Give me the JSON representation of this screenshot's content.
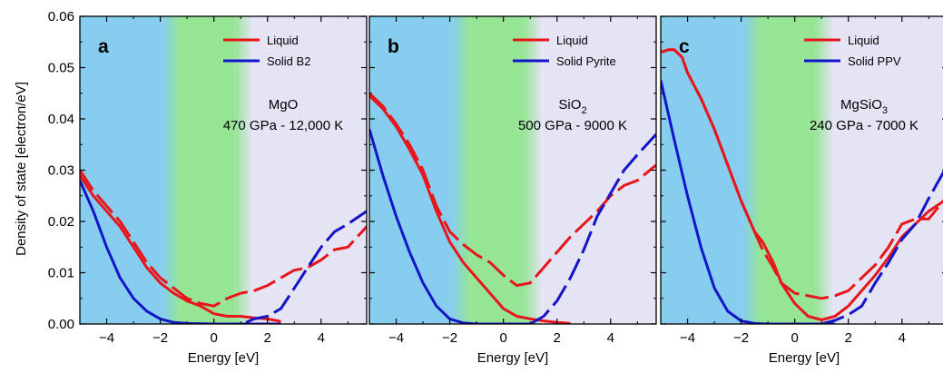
{
  "chart_data": [
    {
      "type": "line",
      "panel_label": "a",
      "annotation": [
        "MgO",
        "470 GPa - 12,000 K"
      ],
      "xlabel": "Energy [eV]",
      "ylabel": "Density of state [electron/eV]",
      "xlim": [
        -5,
        5.7
      ],
      "ylim": [
        0,
        0.06
      ],
      "xticks": [
        -4,
        -2,
        0,
        2,
        4
      ],
      "yticks": [
        "0.00",
        "0.01",
        "0.02",
        "0.03",
        "0.04",
        "0.05",
        "0.06"
      ],
      "legend": [
        "Liquid",
        "Solid B2"
      ],
      "legend_position": "top-right",
      "regions": [
        {
          "range": [
            -5,
            -1.6
          ],
          "color": "#87cdf0"
        },
        {
          "range": [
            -1.6,
            1.1
          ],
          "color": "#95e595"
        },
        {
          "range": [
            1.1,
            5.7
          ],
          "color": "#e4e4f5"
        }
      ],
      "series": [
        {
          "name": "Liquid",
          "style": "solid",
          "color": "#e8161b",
          "x": [
            -5,
            -4.5,
            -4,
            -3.5,
            -3,
            -2.5,
            -2,
            -1.5,
            -1,
            -0.5,
            0,
            0.5,
            1,
            1.5,
            2,
            2.5
          ],
          "y": [
            0.029,
            0.025,
            0.022,
            0.019,
            0.015,
            0.011,
            0.008,
            0.006,
            0.0045,
            0.0035,
            0.002,
            0.0015,
            0.0015,
            0.0012,
            0.001,
            0.0005
          ]
        },
        {
          "name": "Liquid",
          "style": "dashed",
          "color": "#e8161b",
          "x": [
            -5,
            -4.5,
            -4,
            -3.5,
            -3,
            -2.5,
            -2,
            -1.5,
            -1,
            -0.5,
            0,
            0.5,
            1,
            1.5,
            2,
            2.5,
            3,
            3.5,
            4,
            4.5,
            5,
            5.7
          ],
          "y": [
            0.03,
            0.026,
            0.023,
            0.02,
            0.016,
            0.012,
            0.009,
            0.007,
            0.005,
            0.004,
            0.0035,
            0.005,
            0.006,
            0.0065,
            0.0075,
            0.009,
            0.0105,
            0.011,
            0.0125,
            0.0145,
            0.015,
            0.019
          ]
        },
        {
          "name": "Solid B2",
          "style": "solid",
          "color": "#1414c8",
          "x": [
            -5,
            -4.5,
            -4,
            -3.5,
            -3,
            -2.5,
            -2,
            -1.5,
            -1,
            0,
            1,
            2,
            2.5
          ],
          "y": [
            0.028,
            0.022,
            0.015,
            0.009,
            0.005,
            0.0025,
            0.001,
            0.0003,
            0.0001,
            0,
            0,
            0,
            0
          ]
        },
        {
          "name": "Solid B2",
          "style": "dashed",
          "color": "#1414c8",
          "x": [
            1.2,
            1.5,
            2,
            2.5,
            3,
            3.5,
            4,
            4.5,
            5,
            5.7
          ],
          "y": [
            0.0003,
            0.001,
            0.0015,
            0.003,
            0.007,
            0.011,
            0.015,
            0.018,
            0.0195,
            0.022
          ]
        }
      ]
    },
    {
      "type": "line",
      "panel_label": "b",
      "annotation": [
        "SiO",
        "2",
        "500 GPa - 9000 K"
      ],
      "xlabel": "Energy [eV]",
      "xlim": [
        -5,
        5.7
      ],
      "ylim": [
        0,
        0.06
      ],
      "xticks": [
        -4,
        -2,
        0,
        2,
        4
      ],
      "legend": [
        "Liquid",
        "Solid Pyrite"
      ],
      "legend_position": "top-right",
      "regions": [
        {
          "range": [
            -5,
            -1.6
          ],
          "color": "#87cdf0"
        },
        {
          "range": [
            -1.6,
            1.1
          ],
          "color": "#95e595"
        },
        {
          "range": [
            1.1,
            5.7
          ],
          "color": "#e4e4f5"
        }
      ],
      "series": [
        {
          "name": "Liquid",
          "style": "solid",
          "color": "#e8161b",
          "x": [
            -5,
            -4.5,
            -4,
            -3.5,
            -3,
            -2.5,
            -2,
            -1.5,
            -1,
            -0.5,
            0,
            0.5,
            1,
            1.5,
            2,
            2.5
          ],
          "y": [
            0.0445,
            0.042,
            0.0385,
            0.034,
            0.029,
            0.022,
            0.016,
            0.012,
            0.009,
            0.006,
            0.003,
            0.0015,
            0.001,
            0.0006,
            0.0003,
            0.0001
          ]
        },
        {
          "name": "Liquid",
          "style": "dashed",
          "color": "#e8161b",
          "x": [
            -5,
            -4.5,
            -4,
            -3.5,
            -3,
            -2.5,
            -2,
            -1.5,
            -1,
            -0.5,
            0,
            0.5,
            1,
            1.5,
            2,
            2.5,
            3,
            3.5,
            4,
            4.5,
            5,
            5.7
          ],
          "y": [
            0.045,
            0.0425,
            0.039,
            0.035,
            0.03,
            0.023,
            0.018,
            0.0155,
            0.0135,
            0.012,
            0.0095,
            0.0075,
            0.008,
            0.011,
            0.014,
            0.017,
            0.0195,
            0.022,
            0.025,
            0.027,
            0.028,
            0.031
          ]
        },
        {
          "name": "Solid Pyrite",
          "style": "solid",
          "color": "#1414c8",
          "x": [
            -5,
            -4.5,
            -4,
            -3.5,
            -3,
            -2.5,
            -2,
            -1.5,
            -1,
            0,
            1.0
          ],
          "y": [
            0.038,
            0.029,
            0.021,
            0.014,
            0.008,
            0.0035,
            0.001,
            0.0002,
            0,
            0,
            0
          ]
        },
        {
          "name": "Solid Pyrite",
          "style": "dashed",
          "color": "#1414c8",
          "x": [
            1.0,
            1.5,
            2,
            2.5,
            3,
            3.5,
            4,
            4.5,
            5,
            5.7
          ],
          "y": [
            0,
            0.0015,
            0.0045,
            0.009,
            0.0145,
            0.021,
            0.0255,
            0.03,
            0.033,
            0.037
          ]
        }
      ]
    },
    {
      "type": "line",
      "panel_label": "c",
      "annotation": [
        "MgSiO",
        "3",
        "240 GPa - 7000 K"
      ],
      "xlabel": "Energy [eV]",
      "xlim": [
        -5,
        5.7
      ],
      "ylim": [
        0,
        0.06
      ],
      "xticks": [
        -4,
        -2,
        0,
        2,
        4
      ],
      "legend": [
        "Liquid",
        "Solid PPV"
      ],
      "legend_position": "top-right",
      "regions": [
        {
          "range": [
            -5,
            -1.6
          ],
          "color": "#87cdf0"
        },
        {
          "range": [
            -1.6,
            1.1
          ],
          "color": "#95e595"
        },
        {
          "range": [
            1.1,
            5.7
          ],
          "color": "#e4e4f5"
        }
      ],
      "series": [
        {
          "name": "Liquid",
          "style": "solid",
          "color": "#e8161b",
          "x": [
            -5,
            -4.7,
            -4.5,
            -4.2,
            -4,
            -3.5,
            -3,
            -2.5,
            -2,
            -1.5,
            -1.2,
            -0.8,
            -0.5,
            0,
            0.5,
            1,
            1.5,
            2,
            2.5,
            3,
            3.5,
            4,
            4.5,
            5,
            5.7
          ],
          "y": [
            0.053,
            0.0535,
            0.0535,
            0.052,
            0.049,
            0.044,
            0.038,
            0.031,
            0.024,
            0.018,
            0.016,
            0.012,
            0.008,
            0.004,
            0.0015,
            0.0008,
            0.0015,
            0.0035,
            0.0065,
            0.0095,
            0.013,
            0.017,
            0.0195,
            0.022,
            0.0245
          ]
        },
        {
          "name": "Liquid",
          "style": "dashed",
          "color": "#e8161b",
          "x": [
            -5,
            -4.7,
            -4.5,
            -4.2,
            -4,
            -3.5,
            -3,
            -2.5,
            -2,
            -1.5,
            -1.2,
            -0.8,
            -0.5,
            0,
            0.5,
            1,
            1.5,
            2,
            2.5,
            3,
            3.5,
            4,
            4.5,
            5,
            5.7
          ],
          "y": [
            0.053,
            0.0535,
            0.0535,
            0.052,
            0.049,
            0.044,
            0.038,
            0.031,
            0.024,
            0.018,
            0.0145,
            0.011,
            0.008,
            0.006,
            0.0055,
            0.005,
            0.0055,
            0.0065,
            0.009,
            0.0115,
            0.015,
            0.0195,
            0.0205,
            0.0205,
            0.025
          ]
        },
        {
          "name": "Solid PPV",
          "style": "solid",
          "color": "#1414c8",
          "x": [
            -5,
            -4.5,
            -4,
            -3.5,
            -3,
            -2.5,
            -2,
            -1.5,
            -1,
            0,
            1,
            1.5
          ],
          "y": [
            0.0475,
            0.036,
            0.025,
            0.015,
            0.007,
            0.0025,
            0.0006,
            0.0001,
            0,
            0,
            0,
            0
          ]
        },
        {
          "name": "Solid PPV",
          "style": "dashed",
          "color": "#1414c8",
          "x": [
            1.0,
            1.5,
            2,
            2.5,
            3,
            3.5,
            4,
            4.5,
            5,
            5.7
          ],
          "y": [
            0,
            0.0007,
            0.0018,
            0.0035,
            0.008,
            0.012,
            0.0165,
            0.0195,
            0.0245,
            0.031
          ]
        }
      ]
    }
  ]
}
